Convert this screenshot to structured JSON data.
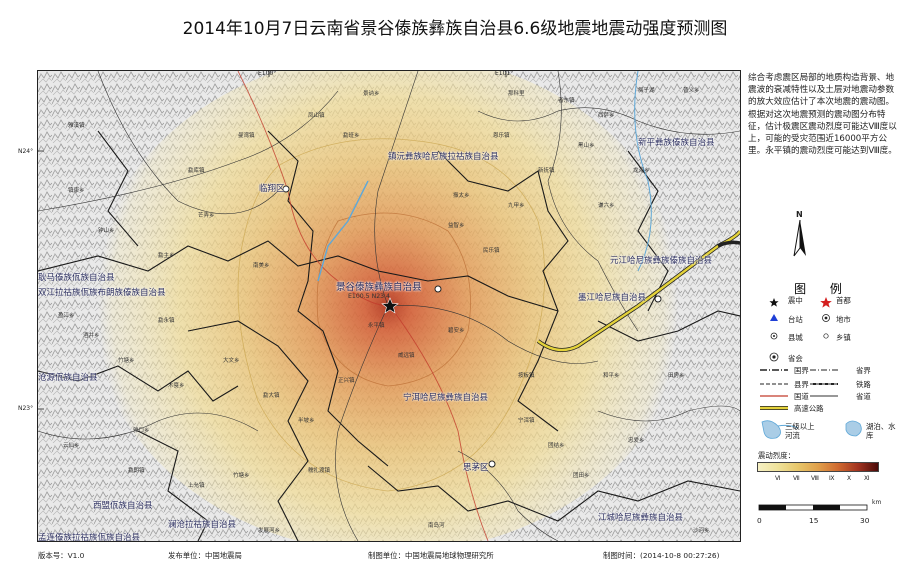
{
  "title": "2014年10月7日云南省景谷傣族彝族自治县6.6级地震地震动强度预测图",
  "description": "综合考虑震区局部的地质构造背景、地震波的衰减特性以及土层对地震动参数的放大效应估计了本次地震的震动图。根据对这次地震预测的震动图分布特征，估计极震区震动烈度可能达Ⅷ度以上，可能的受灾范围近16000平方公里。永平镇的震动烈度可能达到Ⅷ度。",
  "map": {
    "coords": {
      "e100": "E100°",
      "e101": "E101°",
      "n24": "N24°",
      "n23": "N23°"
    },
    "epicenter_label": "景谷傣族彝族自治县",
    "epicenter_coord": "E100.5    N23.4",
    "county_labels": [
      "镇沅彝族哈尼族拉祜族自治县",
      "临翔区",
      "双江拉祜族佤族布朗族傣族自治县",
      "耿马傣族佤族自治县",
      "沧源佤族自治县",
      "宁洱哈尼族彝族自治县",
      "思茅区",
      "澜沧拉祜族自治县",
      "西盟佤族自治县",
      "孟连傣族拉祜族佤族自治县",
      "江城哈尼族彝族自治县",
      "墨江哈尼族自治县",
      "新平彝族傣族自治县",
      "元江哈尼族彝族傣族自治县"
    ],
    "towns": [
      "永平镇",
      "凤山镇",
      "勐班乡",
      "威远镇",
      "碧安乡",
      "民乐镇",
      "益智乡",
      "正兴镇",
      "半坡乡",
      "勐库镇",
      "南美乡",
      "勐永镇",
      "大文乡",
      "雅口乡",
      "新抚镇",
      "按板镇",
      "勐主乡",
      "西萨乡",
      "景讷乡",
      "那科里",
      "糯扎渡镇",
      "竹塘乡",
      "发展河乡",
      "振太乡",
      "南岛河",
      "芒弄乡",
      "钟山乡",
      "和平乡",
      "团结乡",
      "忠爱乡",
      "田房乡",
      "谦六乡",
      "宁洱镇",
      "普义乡",
      "梅子湖",
      "黑山乡",
      "团田乡",
      "恩乐镇",
      "九甲乡",
      "者东镇",
      "龙海乡",
      "曼湾镇",
      "勐大镇",
      "上允镇",
      "勐朗镇",
      "云仙乡",
      "酒井乡",
      "竹塘乡",
      "木戛乡",
      "雅溪镇",
      "镇康乡",
      "盈江乡",
      "沙河乡"
    ],
    "north_label": "N"
  },
  "legend": {
    "title": "图 例",
    "items": {
      "epicenter": "震中",
      "capital": "首都",
      "station": "台站",
      "city": "地市",
      "county": "县城",
      "township": "乡镇",
      "province_capital": "省会",
      "national_border": "国界",
      "province_border": "省界",
      "county_border": "县界",
      "railway": "铁路",
      "national_road": "国道",
      "provincial_road": "省道",
      "expressway": "高速公路",
      "rivers": "三级以上河流",
      "lakes": "湖泊、水库"
    },
    "intensity_title": "震动烈度：",
    "intensity_levels": [
      "Ⅵ",
      "Ⅶ",
      "Ⅷ",
      "Ⅸ",
      "Ⅹ",
      "Ⅺ"
    ],
    "scale_labels": [
      "0",
      "15",
      "30"
    ],
    "scale_unit": "km"
  },
  "footer": {
    "version": "版本号：V1.0",
    "publisher": "发布单位：中国地震局",
    "producer": "制图单位：中国地震局地球物理研究所",
    "time": "制图时间：(2014-10-8 00:27:26)"
  },
  "colors": {
    "intensity_gradient": [
      "#f6f0c4",
      "#efe29a",
      "#e7c66a",
      "#e0a04b",
      "#d06a30",
      "#a23320",
      "#4a0a08"
    ],
    "expressway": "#e4d23a",
    "river": "#5fa8d8",
    "county_border": "#1a1a1a",
    "label": "#2c2f60"
  }
}
